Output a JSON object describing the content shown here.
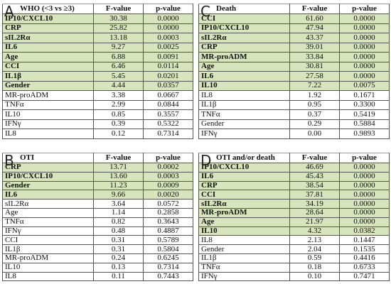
{
  "panels": [
    {
      "label": "A",
      "header": [
        "WHO (<3 vs ≥3)",
        "F-value",
        "p-value"
      ],
      "highlighted": 8,
      "rows": [
        [
          "IP10/CXCL10",
          "30.38",
          "0.0000"
        ],
        [
          "CRP",
          "25.82",
          "0.0000"
        ],
        [
          "sIL2Rα",
          "13.18",
          "0.0003"
        ],
        [
          "IL6",
          "9.27",
          "0.0025"
        ],
        [
          "Age",
          "6.88",
          "0.0091"
        ],
        [
          "CCI",
          "6.46",
          "0.0114"
        ],
        [
          "IL1β",
          "5.45",
          "0.0201"
        ],
        [
          "Gender",
          "4.44",
          "0.0357"
        ],
        [
          "MR-proADM",
          "3.38",
          "0.0667"
        ],
        [
          "TNFα",
          "2.99",
          "0.0844"
        ],
        [
          "IL10",
          "0.85",
          "0.3557"
        ],
        [
          "IFNγ",
          "0.39",
          "0.5322"
        ],
        [
          "IL8",
          "0.12",
          "0.7314"
        ]
      ]
    },
    {
      "label": "C",
      "header": [
        "Death",
        "F-value",
        "p-value"
      ],
      "highlighted": 8,
      "rows": [
        [
          "CCI",
          "61.60",
          "0.0000"
        ],
        [
          "IP10/CXCL10",
          "47.94",
          "0.0000"
        ],
        [
          "sIL2Rα",
          "43.37",
          "0.0000"
        ],
        [
          "CRP",
          "39.01",
          "0.0000"
        ],
        [
          "MR-proADM",
          "33.84",
          "0.0000"
        ],
        [
          "Age",
          "30.81",
          "0.0000"
        ],
        [
          "IL6",
          "27.58",
          "0.0000"
        ],
        [
          "IL10",
          "7.22",
          "0.0075"
        ],
        [
          "IL8",
          "1.92",
          "0.1671"
        ],
        [
          "IL1β",
          "0.95",
          "0.3300"
        ],
        [
          "TNFα",
          "0.37",
          "0.5419"
        ],
        [
          "Gender",
          "0.29",
          "0.5884"
        ],
        [
          "IFNγ",
          "0.00",
          "0.9893"
        ]
      ]
    },
    {
      "label": "B",
      "header": [
        "OTI",
        "F-value",
        "p-value"
      ],
      "highlighted": 4,
      "rows": [
        [
          "CRP",
          "13.71",
          "0.0002"
        ],
        [
          "IP10/CXCL10",
          "13.60",
          "0.0003"
        ],
        [
          "Gender",
          "11.23",
          "0.0009"
        ],
        [
          "IL6",
          "9.66",
          "0.0020"
        ],
        [
          "sIL2Rα",
          "3.64",
          "0.0572"
        ],
        [
          "Age",
          "1.14",
          "0.2858"
        ],
        [
          "TNFα",
          "0.82",
          "0.3643"
        ],
        [
          "IFNγ",
          "0.48",
          "0.4887"
        ],
        [
          "CCI",
          "0.31",
          "0.5789"
        ],
        [
          "IL1β",
          "0.31",
          "0.5804"
        ],
        [
          "MR-proADM",
          "0.24",
          "0.6245"
        ],
        [
          "IL10",
          "0.13",
          "0.7314"
        ],
        [
          "IL8",
          "0.11",
          "0.7443"
        ]
      ]
    },
    {
      "label": "D",
      "header": [
        "OTI and/or death",
        "F-value",
        "p-value"
      ],
      "highlighted": 8,
      "rows": [
        [
          "IP10/CXCL10",
          "46.69",
          "0.0000"
        ],
        [
          "IL6",
          "45.43",
          "0.0000"
        ],
        [
          "CRP",
          "38.54",
          "0.0000"
        ],
        [
          "CCI",
          "37.81",
          "0.0000"
        ],
        [
          "sIL2Rα",
          "34.19",
          "0.0000"
        ],
        [
          "MR-proADM",
          "28.64",
          "0.0000"
        ],
        [
          "Age",
          "21.97",
          "0.0000"
        ],
        [
          "IL10",
          "4.32",
          "0.0382"
        ],
        [
          "IL8",
          "2.13",
          "0.1447"
        ],
        [
          "Gender",
          "2.04",
          "0.1535"
        ],
        [
          "IL1β",
          "0.59",
          "0.4416"
        ],
        [
          "TNFα",
          "0.18",
          "0.6733"
        ],
        [
          "IFNγ",
          "0.10",
          "0.7471"
        ]
      ]
    }
  ]
}
